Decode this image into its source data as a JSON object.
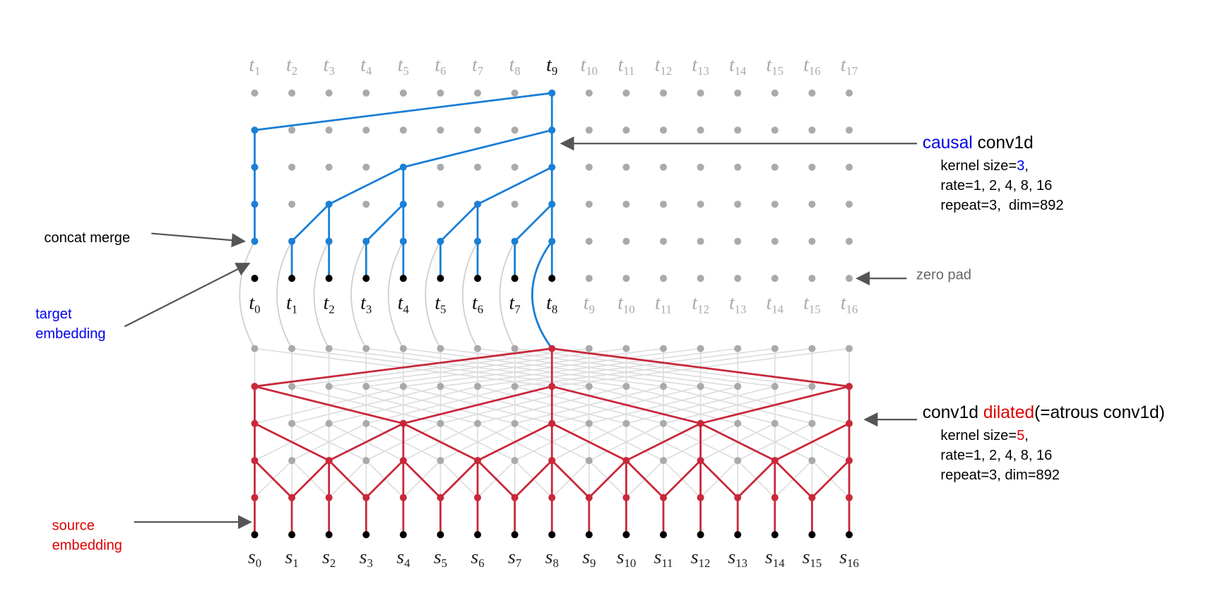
{
  "top_labels": {
    "letter": "t",
    "indices": [
      "1",
      "2",
      "3",
      "4",
      "5",
      "6",
      "7",
      "8",
      "9",
      "10",
      "11",
      "12",
      "13",
      "14",
      "15",
      "16",
      "17"
    ]
  },
  "mid_labels": {
    "letter": "t",
    "indices": [
      "0",
      "1",
      "2",
      "3",
      "4",
      "5",
      "6",
      "7",
      "8",
      "9",
      "10",
      "11",
      "12",
      "13",
      "14",
      "15",
      "16"
    ]
  },
  "bottom_labels": {
    "letter": "s",
    "indices": [
      "0",
      "1",
      "2",
      "3",
      "4",
      "5",
      "6",
      "7",
      "8",
      "9",
      "10",
      "11",
      "12",
      "13",
      "14",
      "15",
      "16"
    ]
  },
  "annotations": {
    "causal": {
      "title": [
        "causal",
        " conv1d"
      ],
      "lines": [
        [
          "kernel size=",
          "3",
          ","
        ],
        [
          "rate=1, 2, 4, 8, 16"
        ],
        [
          "repeat=3,  dim=892"
        ]
      ]
    },
    "dilated": {
      "title": [
        "conv1d ",
        "dilated",
        "(=atrous conv1d)"
      ],
      "lines": [
        [
          "kernel size=",
          "5",
          ","
        ],
        [
          "rate=1, 2, 4, 8, 16"
        ],
        [
          "repeat=3, dim=892"
        ]
      ]
    },
    "concat_merge": "concat merge",
    "target_embedding": [
      "target",
      "embedding"
    ],
    "source_embedding": [
      "source",
      "embedding"
    ],
    "zero_pad": "zero pad"
  }
}
